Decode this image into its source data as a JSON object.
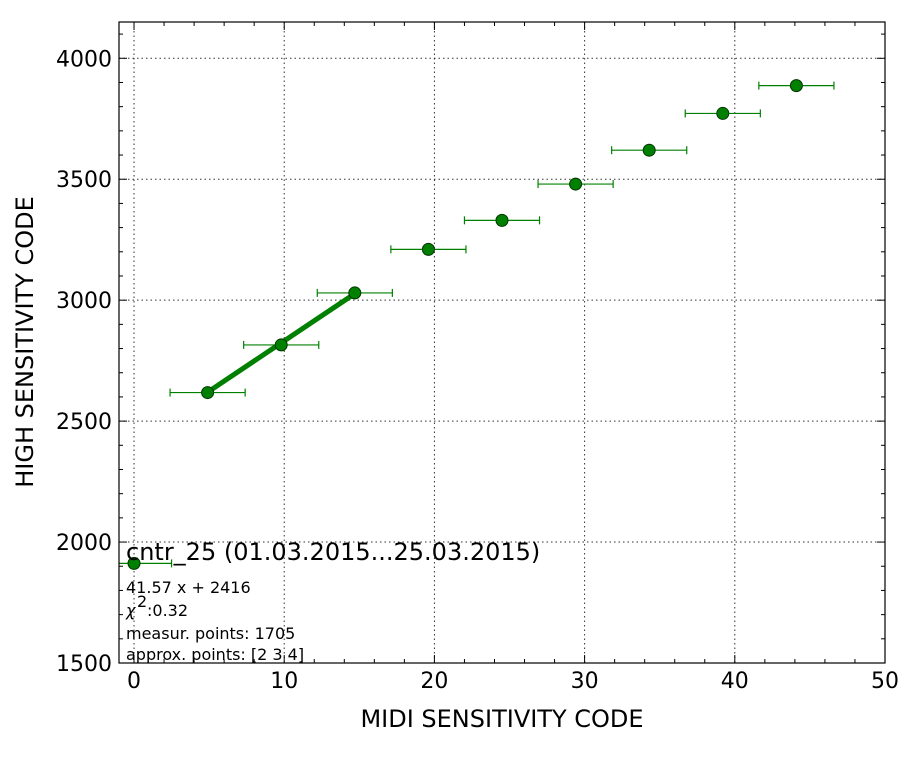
{
  "chart_data": {
    "type": "scatter",
    "title": "cntr_25 (01.03.2015...25.03.2015)",
    "xlabel": "MIDI SENSITIVITY CODE",
    "ylabel": "HIGH SENSITIVITY CODE",
    "xlim": [
      -1,
      50
    ],
    "ylim": [
      1500,
      4150
    ],
    "xticks": [
      0,
      10,
      20,
      30,
      40,
      50
    ],
    "yticks": [
      1500,
      2000,
      2500,
      3000,
      3500,
      4000
    ],
    "grid": true,
    "colors": {
      "series": "#008000",
      "marker_edge": "#003300"
    },
    "points": [
      {
        "x": 0.0,
        "y": 1912,
        "xerr": 2.5
      },
      {
        "x": 4.9,
        "y": 2618,
        "xerr": 2.5
      },
      {
        "x": 9.8,
        "y": 2815,
        "xerr": 2.5
      },
      {
        "x": 14.7,
        "y": 3030,
        "xerr": 2.5
      },
      {
        "x": 19.6,
        "y": 3210,
        "xerr": 2.5
      },
      {
        "x": 24.5,
        "y": 3330,
        "xerr": 2.5
      },
      {
        "x": 29.4,
        "y": 3480,
        "xerr": 2.5
      },
      {
        "x": 34.3,
        "y": 3620,
        "xerr": 2.5
      },
      {
        "x": 39.2,
        "y": 3772,
        "xerr": 2.5
      },
      {
        "x": 44.1,
        "y": 3887,
        "xerr": 2.5
      }
    ],
    "fit": {
      "slope": 41.57,
      "intercept": 2416,
      "x_range": [
        4.9,
        14.7
      ]
    },
    "annotations": {
      "equation": "41.57 x + 2416",
      "chi2": ":0.32",
      "measur_points": "measur. points: 1705",
      "approx_points": "approx. points: [2 3 4]"
    }
  }
}
